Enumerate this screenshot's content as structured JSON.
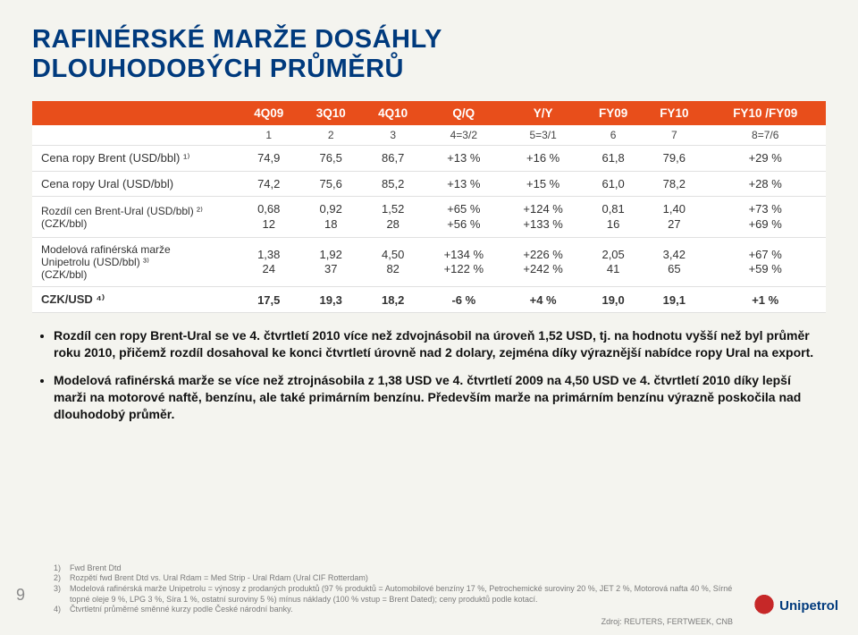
{
  "title_line1": "RAFINÉRSKÉ MARŽE DOSÁHLY",
  "title_line2": "DLOUHODOBÝCH PRŮMĚRŮ",
  "table": {
    "headers": [
      "",
      "4Q09",
      "3Q10",
      "4Q10",
      "Q/Q",
      "Y/Y",
      "FY09",
      "FY10",
      "FY10 /FY09"
    ],
    "subhead": [
      "",
      "1",
      "2",
      "3",
      "4=3/2",
      "5=3/1",
      "6",
      "7",
      "8=7/6"
    ],
    "rows": [
      {
        "label": "Cena ropy Brent (USD/bbl) ¹⁾",
        "cells": [
          "74,9",
          "76,5",
          "86,7",
          "+13 %",
          "+16 %",
          "61,8",
          "79,6",
          "+29 %"
        ]
      },
      {
        "label": "Cena ropy Ural (USD/bbl)",
        "cells": [
          "74,2",
          "75,6",
          "85,2",
          "+13 %",
          "+15 %",
          "61,0",
          "78,2",
          "+28 %"
        ]
      },
      {
        "label": "Rozdíl cen Brent-Ural (USD/bbl) ²⁾",
        "label2": "(CZK/bbl)",
        "cells_top": [
          "0,68",
          "0,92",
          "1,52",
          "+65 %",
          "+124 %",
          "0,81",
          "1,40",
          "+73 %"
        ],
        "cells_bot": [
          "12",
          "18",
          "28",
          "+56 %",
          "+133 %",
          "16",
          "27",
          "+69 %"
        ]
      },
      {
        "label": "Modelová rafinérská marže",
        "label2": "Unipetrolu (USD/bbl) ³⁾",
        "label3": "(CZK/bbl)",
        "cells_top": [
          "1,38",
          "1,92",
          "4,50",
          "+134 %",
          "+226 %",
          "2,05",
          "3,42",
          "+67 %"
        ],
        "cells_bot": [
          "24",
          "37",
          "82",
          "+122 %",
          "+242 %",
          "41",
          "65",
          "+59 %"
        ]
      },
      {
        "label": "CZK/USD ⁴⁾",
        "cells": [
          "17,5",
          "19,3",
          "18,2",
          "-6 %",
          "+4 %",
          "19,0",
          "19,1",
          "+1 %"
        ],
        "bold": true
      }
    ]
  },
  "bullets": [
    "Rozdíl cen ropy Brent-Ural se ve 4. čtvrtletí 2010 více než zdvojnásobil na úroveň 1,52 USD, tj. na hodnotu vyšší než byl průměr roku 2010, přičemž rozdíl dosahoval ke konci čtvrtletí úrovně nad 2 dolary, zejména díky výraznější nabídce ropy Ural na export.",
    "Modelová rafinérská marže se více než ztrojnásobila z 1,38 USD ve 4. čtvrtletí 2009 na 4,50 USD ve 4. čtvrtletí 2010 díky lepší marži na motorové naftě, benzínu, ale také primárním benzínu. Především marže na primárním benzínu výrazně poskočila nad dlouhodobý průměr."
  ],
  "footnotes": [
    {
      "n": "1)",
      "t": "Fwd Brent Dtd"
    },
    {
      "n": "2)",
      "t": "Rozpětí fwd Brent Dtd vs. Ural Rdam = Med Strip - Ural Rdam (Ural CIF Rotterdam)"
    },
    {
      "n": "3)",
      "t": "Modelová rafinérská marže Unipetrolu = výnosy z prodaných produktů (97 % produktů = Automobilové benzíny 17 %, Petrochemické suroviny 20 %, JET 2 %, Motorová nafta 40 %, Sírné topné oleje 9 %, LPG 3 %, Síra 1 %, ostatní suroviny 5 %) mínus náklady (100 % vstup = Brent Dated); ceny produktů podle kotací."
    },
    {
      "n": "4)",
      "t": "Čtvrtletní průměrné směnné kurzy podle České národní banky."
    }
  ],
  "page_number": "9",
  "source": "Zdroj: REUTERS, FERTWEEK, CNB",
  "logo_text": "Unipetrol"
}
